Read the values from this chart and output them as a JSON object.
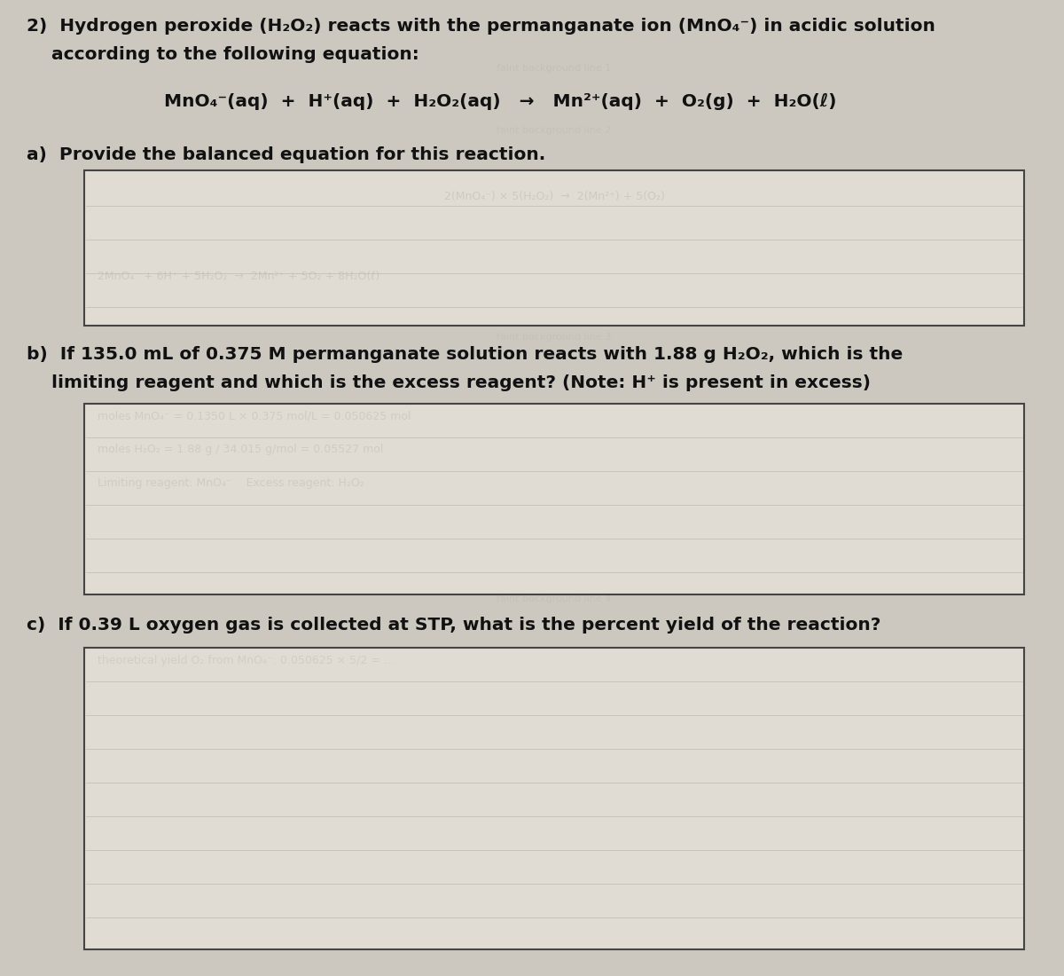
{
  "bg_color": "#ccc8c0",
  "box_color": "#dedad2",
  "box_inner_color": "#e0dcd4",
  "text_color": "#111111",
  "faint_color": "#b8b4ac",
  "title_line1": "2)  Hydrogen peroxide (H₂O₂) reacts with the permanganate ion (MnO₄⁻) in acidic solution",
  "title_line2": "    according to the following equation:",
  "equation": "MnO₄⁻(aq)  +  H⁺(aq)  +  H₂O₂(aq)   →   Mn²⁺(aq)  +  O₂(g)  +  H₂O(ℓ)",
  "part_a_label": "a)  Provide the balanced equation for this reaction.",
  "part_b_line1": "b)  If 135.0 mL of 0.375 M permanganate solution reacts with 1.88 g H₂O₂, which is the",
  "part_b_line2": "    limiting reagent and which is the excess reagent? (Note: H⁺ is present in excess)",
  "part_c_label": "c)  If 0.39 L oxygen gas is collected at STP, what is the percent yield of the reaction?",
  "font_size": 14.5,
  "eq_font_size": 14.5
}
